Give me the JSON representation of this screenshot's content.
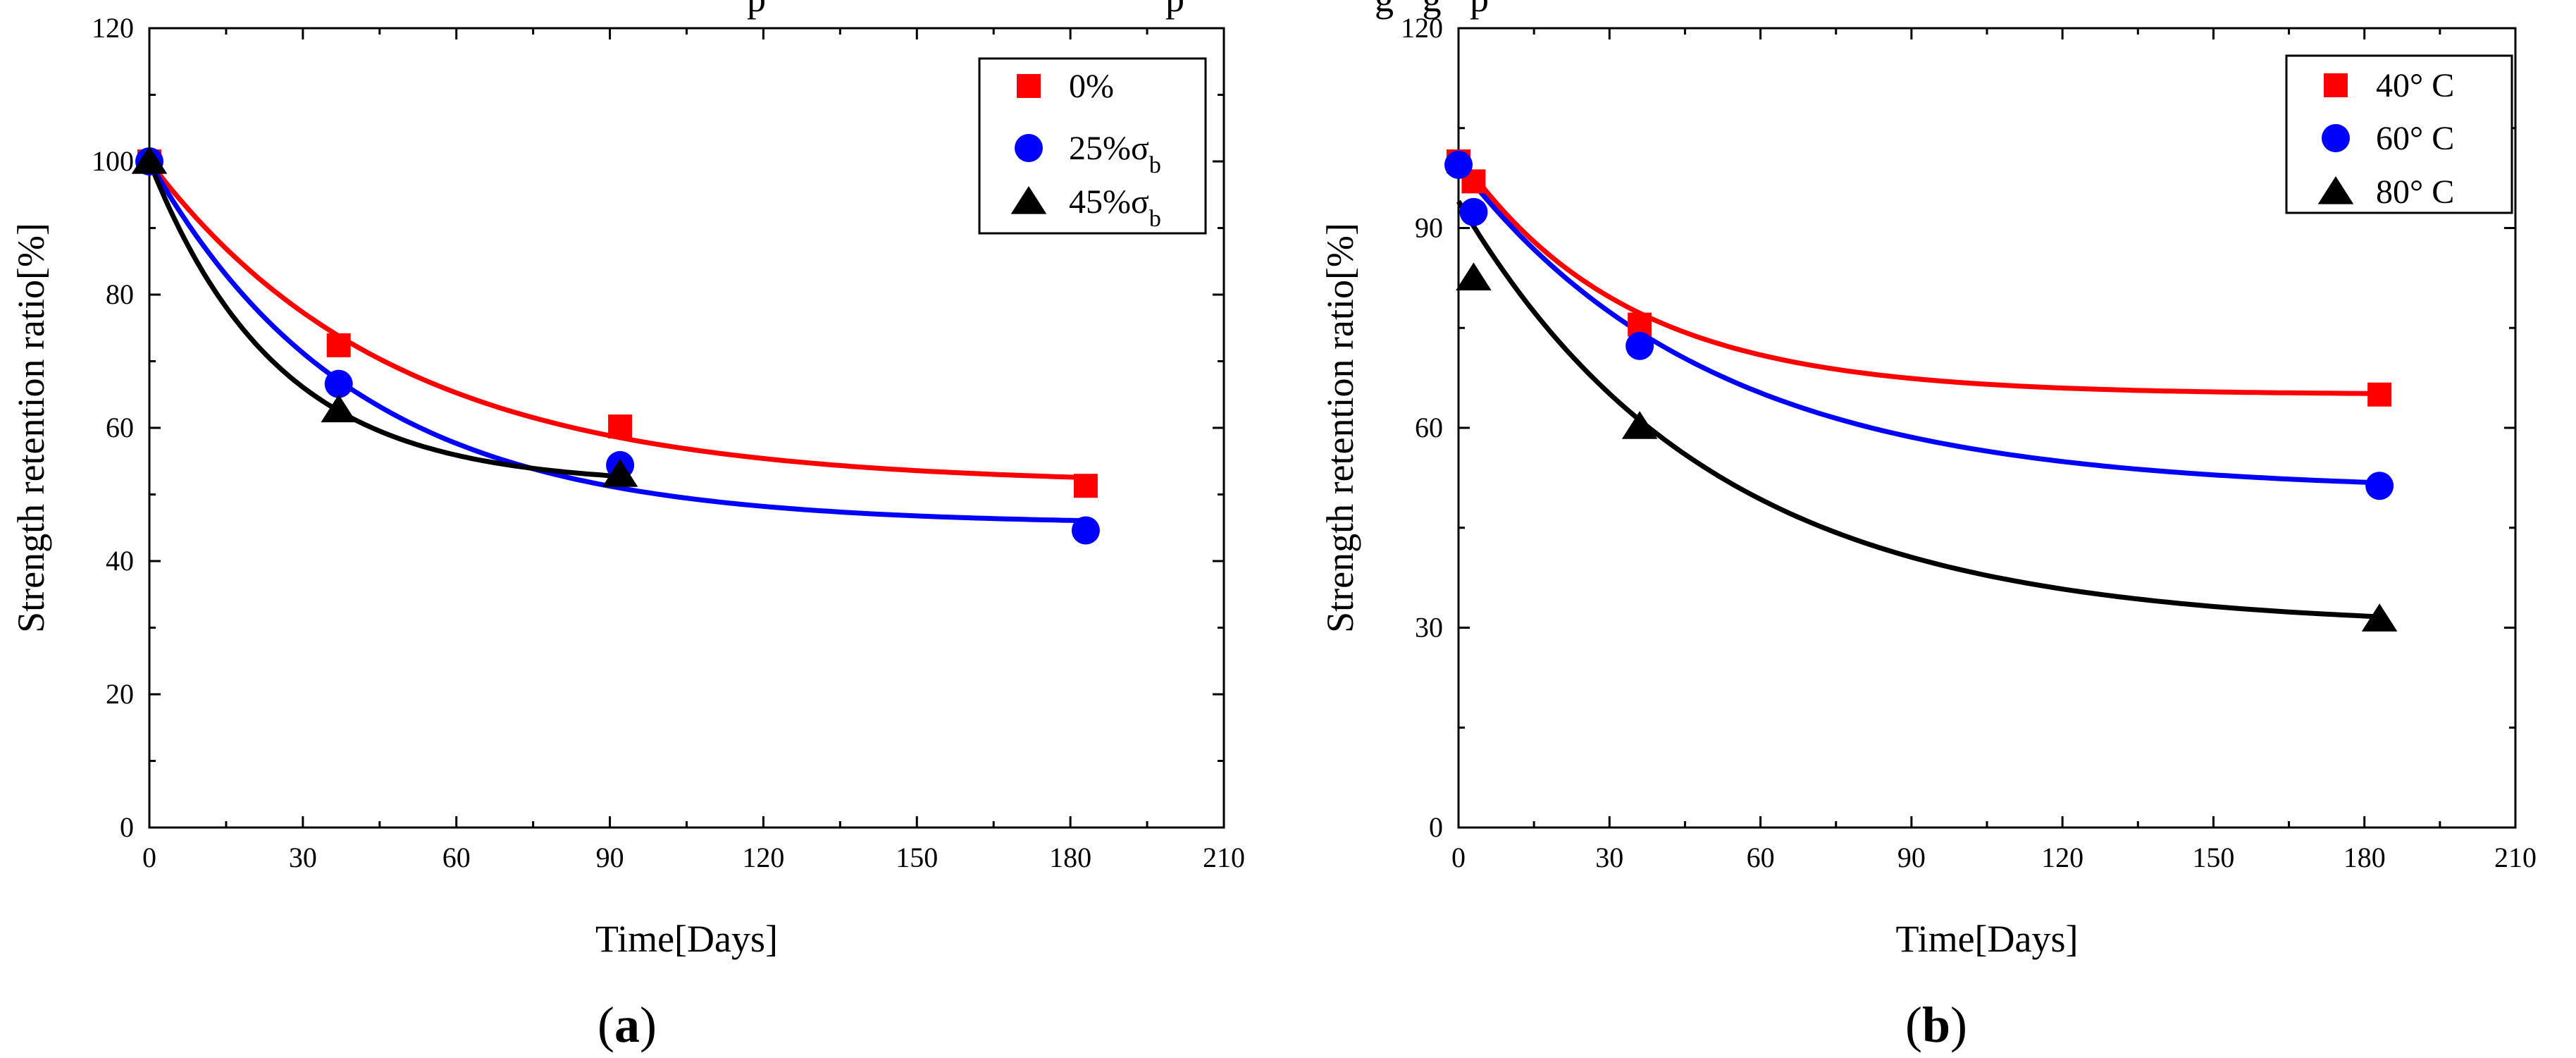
{
  "figure": {
    "top_caption_fragment": "p                                          p                    g   g   p",
    "panel_labels": [
      {
        "open": "(",
        "letter": "a",
        "close": ")"
      },
      {
        "open": "(",
        "letter": "b",
        "close": ")"
      }
    ]
  },
  "chart_data": [
    {
      "type": "scatter",
      "title": "",
      "xlabel": "Time[Days]",
      "ylabel": "Strength retention ratio[%]",
      "xlim": [
        0,
        210
      ],
      "ylim": [
        0,
        120
      ],
      "xticks": [
        0,
        30,
        60,
        90,
        120,
        150,
        180,
        210
      ],
      "yticks": [
        0,
        20,
        40,
        60,
        80,
        100,
        120
      ],
      "grid": false,
      "legend_position": "top-right",
      "series": [
        {
          "name": "0%",
          "name_base": "0%",
          "name_sub": "",
          "color": "#ff0000",
          "marker": "square",
          "x": [
            0,
            37,
            92,
            183
          ],
          "y": [
            100,
            72.4,
            60.2,
            51.3
          ],
          "fit": {
            "a": 51.5,
            "b": 48.5,
            "k": 0.021
          }
        },
        {
          "name": "25%σb",
          "name_base": "25%σ",
          "name_sub": "b",
          "color": "#0000ff",
          "marker": "circle",
          "x": [
            0,
            37,
            92,
            183
          ],
          "y": [
            100,
            66.6,
            54.4,
            44.6
          ],
          "fit": {
            "a": 45.5,
            "b": 54.5,
            "k": 0.025
          }
        },
        {
          "name": "45%σb",
          "name_base": "45%σ",
          "name_sub": "b",
          "color": "#000000",
          "marker": "triangle",
          "x": [
            0,
            37,
            92
          ],
          "y": [
            100,
            62.7,
            53.0
          ],
          "fit": {
            "a": 51.5,
            "b": 48.5,
            "k": 0.04,
            "xmax": 92
          }
        }
      ]
    },
    {
      "type": "scatter",
      "title": "",
      "xlabel": "Time[Days]",
      "ylabel": "Strength retention ratio[%]",
      "xlim": [
        0,
        210
      ],
      "ylim": [
        0,
        120
      ],
      "xticks": [
        0,
        30,
        60,
        90,
        120,
        150,
        180,
        210
      ],
      "yticks": [
        0,
        30,
        60,
        90,
        120
      ],
      "grid": false,
      "legend_position": "top-right",
      "series": [
        {
          "name": "40° C",
          "name_base": "40° C",
          "name_sub": "",
          "color": "#ff0000",
          "marker": "square",
          "x": [
            0,
            3,
            36,
            183
          ],
          "y": [
            100,
            97,
            75.5,
            65
          ],
          "fit": {
            "a": 65,
            "b": 36,
            "k": 0.03
          }
        },
        {
          "name": "60° C",
          "name_base": "60° C",
          "name_sub": "",
          "color": "#0000ff",
          "marker": "circle",
          "x": [
            0,
            3,
            36,
            183
          ],
          "y": [
            99.5,
            92.4,
            72.3,
            51.3
          ],
          "fit": {
            "a": 50.5,
            "b": 49,
            "k": 0.02
          }
        },
        {
          "name": "80° C",
          "name_base": "80° C",
          "name_sub": "",
          "color": "#000000",
          "marker": "triangle",
          "x": [
            3,
            36,
            183
          ],
          "y": [
            82.5,
            60.2,
            31.3
          ],
          "fit": {
            "a": 30,
            "b": 64,
            "k": 0.02
          }
        }
      ]
    }
  ]
}
